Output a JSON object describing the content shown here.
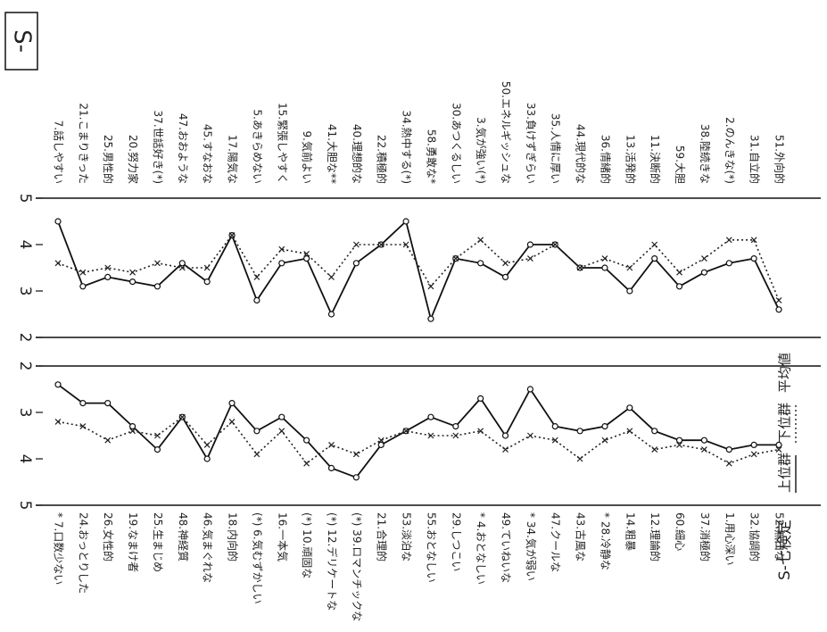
{
  "header": {
    "box": "S-"
  },
  "chart_data": [
    {
      "type": "line",
      "title": "S-七検定",
      "annotation": "平均値",
      "categories": [
        "7.話しやすい",
        "21.こまりきった",
        "25.男性的",
        "20.努力家",
        "37.世話好き(*)",
        "47.おおような",
        "45.すなおな",
        "17.陽気な",
        "5.あきらめない",
        "15.緊張しやすく",
        "9.気前よい",
        "41.大胆な**",
        "40.理想的な",
        "22.積極的",
        "34.熱中する(*)",
        "58.勇敢な*",
        "30.あつくるしい",
        "3.気が強い(*)",
        "50.エネルギッシュな",
        "33.負けずぎらい",
        "35.人情に厚い",
        "44.現代的な",
        "36.情緒的",
        "13.活発的",
        "11.決断的",
        "59.大胆",
        "38.陸続きな",
        "2.のんきな(*)",
        "31.自立的",
        "51.外向的"
      ],
      "series": [
        {
          "name": "上位群",
          "color": "#111111",
          "style": "solid",
          "marker": "circle",
          "values": [
            4.5,
            3.1,
            3.3,
            3.2,
            3.1,
            3.6,
            3.2,
            4.2,
            2.8,
            3.6,
            3.7,
            2.5,
            3.6,
            4.0,
            4.5,
            2.4,
            3.7,
            3.6,
            3.3,
            4.0,
            4.0,
            3.5,
            3.5,
            3.0,
            3.7,
            3.1,
            3.4,
            3.6,
            3.7,
            2.6
          ]
        },
        {
          "name": "下位群",
          "color": "#222222",
          "style": "dotted",
          "marker": "x",
          "values": [
            3.6,
            3.4,
            3.5,
            3.4,
            3.6,
            3.5,
            3.5,
            4.2,
            3.3,
            3.9,
            3.8,
            3.3,
            4.0,
            4.0,
            4.0,
            3.1,
            3.7,
            4.1,
            3.6,
            3.7,
            4.0,
            3.5,
            3.7,
            3.5,
            4.0,
            3.4,
            3.7,
            4.1,
            4.1,
            2.8
          ]
        }
      ],
      "ylim": [
        2,
        5
      ],
      "yticks": [
        5,
        4,
        3,
        2
      ],
      "yreversed": false
    },
    {
      "type": "line",
      "categories": [
        "* 7.口数少ない",
        "24.おっとりした",
        "26.女性的",
        "19.なまけ者",
        "25.生まじめ",
        "48.神経質",
        "46.気まぐれな",
        "18.内向的",
        "(*) 6.気むずかしい",
        "16.一本気",
        "(*) 10.頑固な",
        "(*) 12.デリケートな",
        "(*) 39.ロマンチックな",
        "21.合理的",
        "53.淡泊な",
        "55.おとなしい",
        "29.しつこい",
        "* 4.おとなしい",
        "49.ていねいな",
        "* 34.気が弱い",
        "47.クールな",
        "43.古風な",
        "* 28.冷静な",
        "14.粗暴",
        "12.理論的",
        "60.細心",
        "37.消極的",
        "1.用心深い",
        "32.協調的",
        "52.無口な"
      ],
      "series": [
        {
          "color": "#111111",
          "style": "solid",
          "marker": "circle",
          "values": [
            2.4,
            2.8,
            2.8,
            3.3,
            3.8,
            3.1,
            4.0,
            2.8,
            3.4,
            3.1,
            3.6,
            4.2,
            4.4,
            3.7,
            3.4,
            3.1,
            3.3,
            2.7,
            3.5,
            2.5,
            3.3,
            3.4,
            3.3,
            2.9,
            3.4,
            3.6,
            3.6,
            3.8,
            3.7,
            3.7
          ]
        },
        {
          "color": "#222222",
          "style": "dotted",
          "marker": "x",
          "values": [
            3.2,
            3.3,
            3.6,
            3.4,
            3.5,
            3.1,
            3.7,
            3.2,
            3.9,
            3.4,
            4.1,
            3.7,
            3.9,
            3.6,
            3.4,
            3.5,
            3.5,
            3.4,
            3.8,
            3.5,
            3.6,
            4.0,
            3.6,
            3.4,
            3.8,
            3.7,
            3.8,
            4.1,
            3.9,
            3.8
          ]
        }
      ],
      "ylim": [
        2,
        5
      ],
      "yticks": [
        2,
        3,
        4,
        5
      ],
      "yreversed": true
    }
  ]
}
